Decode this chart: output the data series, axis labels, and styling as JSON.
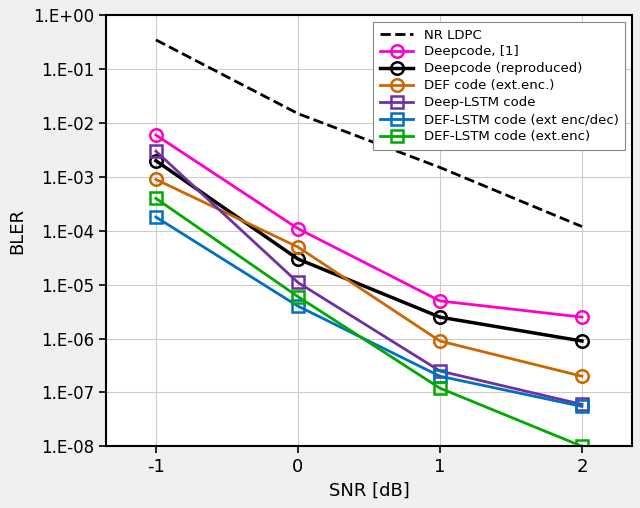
{
  "title": "",
  "xlabel": "SNR [dB]",
  "ylabel": "BLER",
  "xlim": [
    -1.35,
    2.35
  ],
  "ylim_log": [
    -8,
    0
  ],
  "xticks": [
    -1,
    0,
    1,
    2
  ],
  "series": [
    {
      "label": "NR LDPC",
      "color": "#000000",
      "linestyle": "--",
      "linewidth": 2.0,
      "marker": null,
      "x": [
        -1,
        0,
        1,
        2
      ],
      "y": [
        0.35,
        0.015,
        0.0015,
        0.00012
      ]
    },
    {
      "label": "Deepcode, [1]",
      "color": "#ff00cc",
      "linestyle": "-",
      "linewidth": 2.0,
      "marker": "o",
      "marker_facecolor": "none",
      "x": [
        -1,
        0,
        1,
        2
      ],
      "y": [
        0.006,
        0.00011,
        5e-06,
        2.5e-06
      ]
    },
    {
      "label": "Deepcode (reproduced)",
      "color": "#000000",
      "linestyle": "-",
      "linewidth": 2.5,
      "marker": "o",
      "marker_facecolor": "none",
      "x": [
        -1,
        0,
        1,
        2
      ],
      "y": [
        0.002,
        3e-05,
        2.5e-06,
        9e-07
      ]
    },
    {
      "label": "DEF code (ext.enc.)",
      "color": "#cc6600",
      "linestyle": "-",
      "linewidth": 2.0,
      "marker": "o",
      "marker_facecolor": "none",
      "x": [
        -1,
        0,
        1,
        2
      ],
      "y": [
        0.0009,
        5e-05,
        9e-07,
        2e-07
      ]
    },
    {
      "label": "Deep-LSTM code",
      "color": "#7030a0",
      "linestyle": "-",
      "linewidth": 2.0,
      "marker": "s",
      "marker_facecolor": "none",
      "x": [
        -1,
        0,
        1,
        2
      ],
      "y": [
        0.003,
        1.1e-05,
        2.5e-07,
        6e-08
      ]
    },
    {
      "label": "DEF-LSTM code (ext enc/dec)",
      "color": "#0070c0",
      "linestyle": "-",
      "linewidth": 2.0,
      "marker": "s",
      "marker_facecolor": "none",
      "x": [
        -1,
        0,
        1,
        2
      ],
      "y": [
        0.00018,
        4e-06,
        2e-07,
        5.5e-08
      ]
    },
    {
      "label": "DEF-LSTM code (ext.enc)",
      "color": "#00aa00",
      "linestyle": "-",
      "linewidth": 2.0,
      "marker": "s",
      "marker_facecolor": "none",
      "x": [
        -1,
        0,
        1,
        2
      ],
      "y": [
        0.0004,
        6e-06,
        1.2e-07,
        1e-08
      ]
    }
  ],
  "legend_loc": "upper right",
  "background_color": "#f0f0f0",
  "plot_bg_color": "#ffffff",
  "grid_color": "#cccccc",
  "ytick_labels": [
    "1.E-08",
    "1.E-07",
    "1.E-06",
    "1.E-05",
    "1.E-04",
    "1.E-03",
    "1.E-02",
    "1.E-01",
    "1.E+00"
  ]
}
